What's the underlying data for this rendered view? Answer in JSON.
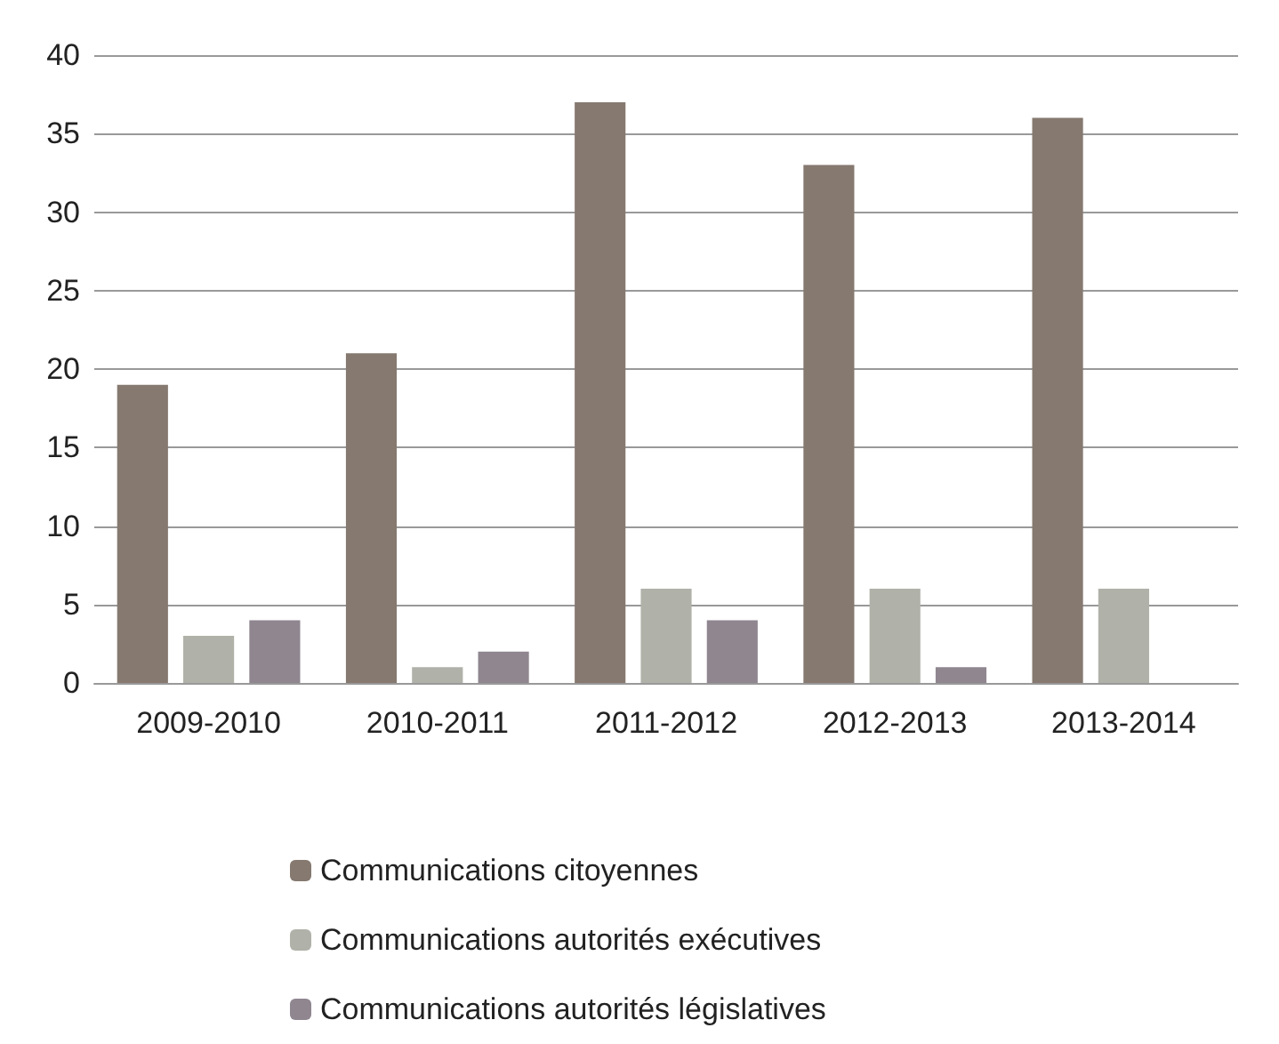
{
  "chart_data": {
    "type": "bar",
    "categories": [
      "2009-2010",
      "2010-2011",
      "2011-2012",
      "2012-2013",
      "2013-2014"
    ],
    "series": [
      {
        "name": "Communications citoyennes",
        "color": "#857970",
        "values": [
          19,
          21,
          37,
          33,
          36
        ]
      },
      {
        "name": "Communications autorités exécutives",
        "color": "#b0b1a8",
        "values": [
          3,
          1,
          6,
          6,
          6
        ]
      },
      {
        "name": "Communications autorités législatives",
        "color": "#8f8690",
        "values": [
          4,
          2,
          4,
          1,
          null
        ]
      }
    ],
    "ylim": [
      0,
      40
    ],
    "yticks": [
      0,
      5,
      10,
      15,
      20,
      25,
      30,
      35,
      40
    ],
    "grid": "y",
    "legend": "bottom"
  }
}
